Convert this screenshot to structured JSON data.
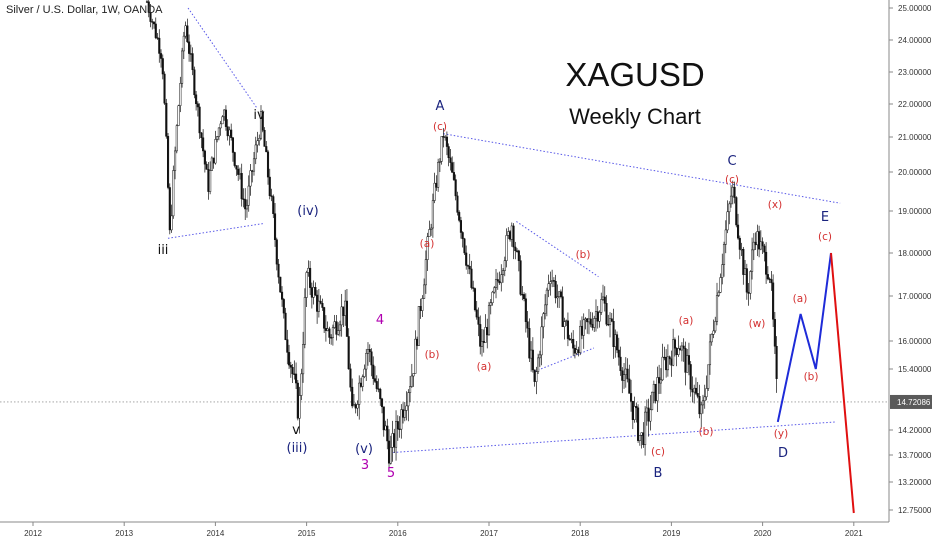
{
  "header": {
    "symbol_line": "Silver / U.S. Dollar, 1W, OANDA"
  },
  "colors": {
    "navy": "#1a237e",
    "red": "#d32f2f",
    "magenta": "#b000b0",
    "black": "#111111",
    "trend": "#5858e8",
    "blue_path": "#1e2bd8",
    "red_path": "#e01010"
  },
  "chart_data": {
    "type": "candlestick",
    "title": "XAGUSD",
    "subtitle": "Weekly Chart",
    "y_ticks": [
      "25.00000",
      "24.00000",
      "23.00000",
      "22.00000",
      "21.00000",
      "20.00000",
      "19.00000",
      "18.00000",
      "17.00000",
      "16.00000",
      "15.40000",
      "14.72086",
      "14.20000",
      "13.70000",
      "13.20000",
      "12.75000"
    ],
    "x_ticks": [
      "2012",
      "2013",
      "2014",
      "2015",
      "2016",
      "2017",
      "2018",
      "2019",
      "2020",
      "2021"
    ],
    "last_price": "14.72086",
    "price_path": [
      [
        "2013-04",
        25.2
      ],
      [
        "2013-06",
        23.5
      ],
      [
        "2013-07",
        18.4
      ],
      [
        "2013-09",
        24.6
      ],
      [
        "2013-12",
        19.6
      ],
      [
        "2014-02",
        21.9
      ],
      [
        "2014-05",
        19.0
      ],
      [
        "2014-07",
        21.5
      ],
      [
        "2014-10",
        16.4
      ],
      [
        "2014-12",
        14.5
      ],
      [
        "2015-01",
        17.5
      ],
      [
        "2015-04",
        16.1
      ],
      [
        "2015-06",
        16.8
      ],
      [
        "2015-07",
        14.4
      ],
      [
        "2015-09",
        15.9
      ],
      [
        "2015-12",
        13.7
      ],
      [
        "2016-03",
        15.4
      ],
      [
        "2016-07",
        21.1
      ],
      [
        "2016-09",
        19.0
      ],
      [
        "2016-12",
        15.8
      ],
      [
        "2017-04",
        18.7
      ],
      [
        "2017-07",
        15.0
      ],
      [
        "2017-09",
        17.6
      ],
      [
        "2017-12",
        15.8
      ],
      [
        "2018-04",
        16.9
      ],
      [
        "2018-09",
        14.0
      ],
      [
        "2018-12",
        15.5
      ],
      [
        "2019-02",
        16.0
      ],
      [
        "2019-05",
        14.4
      ],
      [
        "2019-09",
        19.6
      ],
      [
        "2019-11",
        17.0
      ],
      [
        "2019-12",
        18.5
      ],
      [
        "2020-02",
        17.5
      ],
      [
        "2020-03",
        14.5
      ]
    ],
    "wave_labels": [
      {
        "text": "iii",
        "color": "black"
      },
      {
        "text": "iv",
        "color": "black"
      },
      {
        "text": "v",
        "color": "black"
      },
      {
        "text": "(iii)",
        "color": "navy"
      },
      {
        "text": "(iv)",
        "color": "navy"
      },
      {
        "text": "(v)",
        "color": "navy"
      },
      {
        "text": "3",
        "color": "magenta"
      },
      {
        "text": "4",
        "color": "magenta"
      },
      {
        "text": "5",
        "color": "magenta"
      },
      {
        "text": "A",
        "color": "navy"
      },
      {
        "text": "(c)",
        "color": "red"
      },
      {
        "text": "(a)",
        "color": "red"
      },
      {
        "text": "(b)",
        "color": "red"
      },
      {
        "text": "(a)",
        "color": "red"
      },
      {
        "text": "(b)",
        "color": "red"
      },
      {
        "text": "(c)",
        "color": "red"
      },
      {
        "text": "B",
        "color": "navy"
      },
      {
        "text": "(a)",
        "color": "red"
      },
      {
        "text": "(b)",
        "color": "red"
      },
      {
        "text": "C",
        "color": "navy"
      },
      {
        "text": "(c)",
        "color": "red"
      },
      {
        "text": "(w)",
        "color": "red"
      },
      {
        "text": "(x)",
        "color": "red"
      },
      {
        "text": "(y)",
        "color": "red"
      },
      {
        "text": "D",
        "color": "navy"
      },
      {
        "text": "(a)",
        "color": "red"
      },
      {
        "text": "(b)",
        "color": "red"
      },
      {
        "text": "(c)",
        "color": "red"
      },
      {
        "text": "E",
        "color": "navy"
      }
    ],
    "projection": {
      "blue_path": [
        [
          "2020-03",
          14.35
        ],
        [
          "2020-06",
          16.6
        ],
        [
          "2020-08",
          15.4
        ],
        [
          "2020-10",
          18.0
        ]
      ],
      "red_path": [
        [
          "2020-10",
          18.0
        ],
        [
          "2021-01",
          12.7
        ]
      ]
    }
  }
}
